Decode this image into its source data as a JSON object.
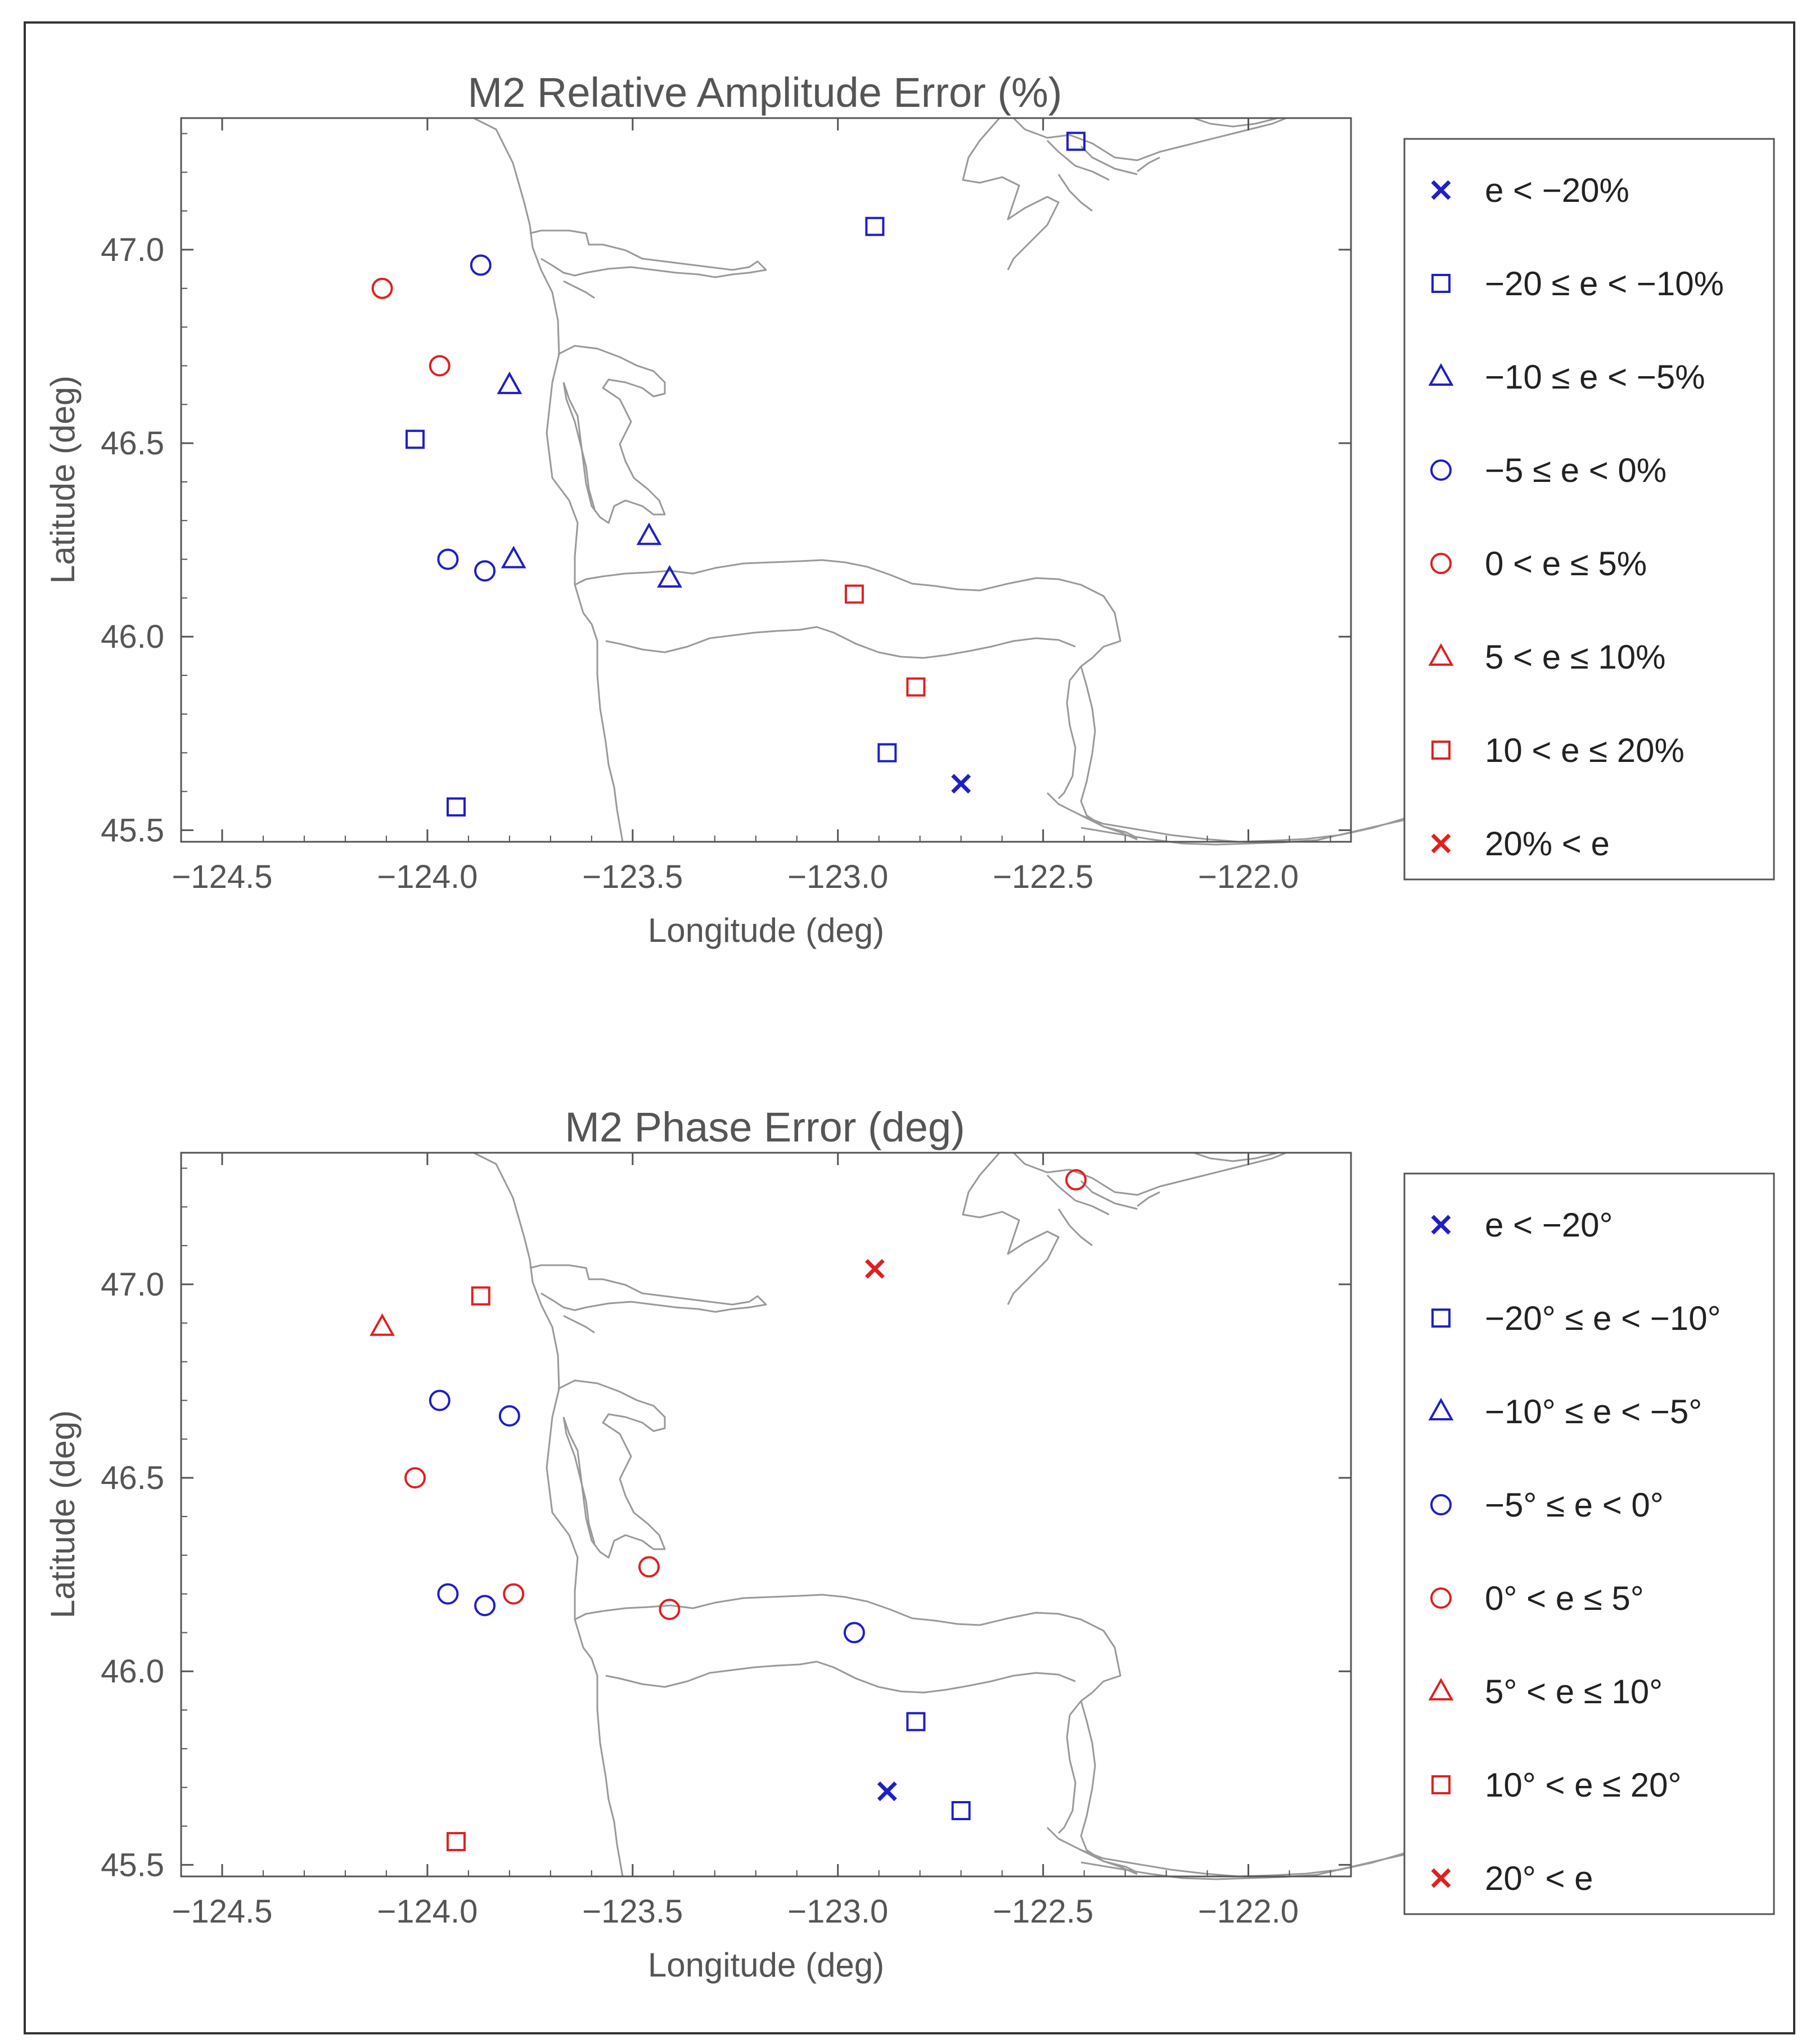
{
  "colors": {
    "negative": "#1f1fc8",
    "positive": "#e02020",
    "coast": "#999999",
    "frame": "#555555"
  },
  "chart_data": [
    {
      "type": "scatter",
      "title": "M2 Relative Amplitude Error (%)",
      "xlabel": "Longitude (deg)",
      "ylabel": "Latitude (deg)",
      "xlim": [
        -124.6,
        -121.75
      ],
      "ylim": [
        45.47,
        47.34
      ],
      "xticks": [
        -124.5,
        -124.0,
        -123.5,
        -123.0,
        -122.5,
        -122.0
      ],
      "xtick_labels": [
        "−124.5",
        "−124.0",
        "−123.5",
        "−123.0",
        "−122.5",
        "−122.0"
      ],
      "yticks": [
        45.5,
        46.0,
        46.5,
        47.0
      ],
      "ytick_labels": [
        "45.5",
        "46.0",
        "46.5",
        "47.0"
      ],
      "legend": [
        {
          "label": "e < −20%",
          "marker": "x",
          "color": "negative"
        },
        {
          "label": "−20 ≤ e < −10%",
          "marker": "square",
          "color": "negative"
        },
        {
          "label": "−10 ≤ e < −5%",
          "marker": "triangle",
          "color": "negative"
        },
        {
          "label": "−5 ≤ e < 0%",
          "marker": "circle",
          "color": "negative"
        },
        {
          "label": "0 < e ≤ 5%",
          "marker": "circle",
          "color": "positive"
        },
        {
          "label": "5 < e ≤ 10%",
          "marker": "triangle",
          "color": "positive"
        },
        {
          "label": "10 < e ≤ 20%",
          "marker": "square",
          "color": "positive"
        },
        {
          "label": "20% < e",
          "marker": "x",
          "color": "positive"
        }
      ],
      "points": [
        {
          "lon": -122.42,
          "lat": 47.28,
          "marker": "square",
          "color": "negative"
        },
        {
          "lon": -122.91,
          "lat": 47.06,
          "marker": "square",
          "color": "negative"
        },
        {
          "lon": -123.87,
          "lat": 46.96,
          "marker": "circle",
          "color": "negative"
        },
        {
          "lon": -124.11,
          "lat": 46.9,
          "marker": "circle",
          "color": "positive"
        },
        {
          "lon": -123.97,
          "lat": 46.7,
          "marker": "circle",
          "color": "positive"
        },
        {
          "lon": -123.8,
          "lat": 46.65,
          "marker": "triangle",
          "color": "negative"
        },
        {
          "lon": -124.03,
          "lat": 46.51,
          "marker": "square",
          "color": "negative"
        },
        {
          "lon": -123.95,
          "lat": 46.2,
          "marker": "circle",
          "color": "negative"
        },
        {
          "lon": -123.86,
          "lat": 46.17,
          "marker": "circle",
          "color": "negative"
        },
        {
          "lon": -123.79,
          "lat": 46.2,
          "marker": "triangle",
          "color": "negative"
        },
        {
          "lon": -123.46,
          "lat": 46.26,
          "marker": "triangle",
          "color": "negative"
        },
        {
          "lon": -123.41,
          "lat": 46.15,
          "marker": "triangle",
          "color": "negative"
        },
        {
          "lon": -122.96,
          "lat": 46.11,
          "marker": "square",
          "color": "positive"
        },
        {
          "lon": -122.81,
          "lat": 45.87,
          "marker": "square",
          "color": "positive"
        },
        {
          "lon": -122.88,
          "lat": 45.7,
          "marker": "square",
          "color": "negative"
        },
        {
          "lon": -122.7,
          "lat": 45.62,
          "marker": "x",
          "color": "negative"
        },
        {
          "lon": -123.93,
          "lat": 45.56,
          "marker": "square",
          "color": "negative"
        }
      ]
    },
    {
      "type": "scatter",
      "title": "M2 Phase Error (deg)",
      "xlabel": "Longitude (deg)",
      "ylabel": "Latitude (deg)",
      "xlim": [
        -124.6,
        -121.75
      ],
      "ylim": [
        45.47,
        47.34
      ],
      "xticks": [
        -124.5,
        -124.0,
        -123.5,
        -123.0,
        -122.5,
        -122.0
      ],
      "xtick_labels": [
        "−124.5",
        "−124.0",
        "−123.5",
        "−123.0",
        "−122.5",
        "−122.0"
      ],
      "yticks": [
        45.5,
        46.0,
        46.5,
        47.0
      ],
      "ytick_labels": [
        "45.5",
        "46.0",
        "46.5",
        "47.0"
      ],
      "legend": [
        {
          "label": "e < −20°",
          "marker": "x",
          "color": "negative"
        },
        {
          "label": "−20° ≤ e < −10°",
          "marker": "square",
          "color": "negative"
        },
        {
          "label": "−10° ≤ e < −5°",
          "marker": "triangle",
          "color": "negative"
        },
        {
          "label": "−5° ≤ e < 0°",
          "marker": "circle",
          "color": "negative"
        },
        {
          "label": "0° < e ≤ 5°",
          "marker": "circle",
          "color": "positive"
        },
        {
          "label": "5° < e ≤ 10°",
          "marker": "triangle",
          "color": "positive"
        },
        {
          "label": "10° < e ≤ 20°",
          "marker": "square",
          "color": "positive"
        },
        {
          "label": "20° < e",
          "marker": "x",
          "color": "positive"
        }
      ],
      "points": [
        {
          "lon": -122.42,
          "lat": 47.27,
          "marker": "circle",
          "color": "positive"
        },
        {
          "lon": -122.91,
          "lat": 47.04,
          "marker": "x",
          "color": "positive"
        },
        {
          "lon": -123.87,
          "lat": 46.97,
          "marker": "square",
          "color": "positive"
        },
        {
          "lon": -124.11,
          "lat": 46.89,
          "marker": "triangle",
          "color": "positive"
        },
        {
          "lon": -123.97,
          "lat": 46.7,
          "marker": "circle",
          "color": "negative"
        },
        {
          "lon": -123.8,
          "lat": 46.66,
          "marker": "circle",
          "color": "negative"
        },
        {
          "lon": -124.03,
          "lat": 46.5,
          "marker": "circle",
          "color": "positive"
        },
        {
          "lon": -123.95,
          "lat": 46.2,
          "marker": "circle",
          "color": "negative"
        },
        {
          "lon": -123.86,
          "lat": 46.17,
          "marker": "circle",
          "color": "negative"
        },
        {
          "lon": -123.79,
          "lat": 46.2,
          "marker": "circle",
          "color": "positive"
        },
        {
          "lon": -123.46,
          "lat": 46.27,
          "marker": "circle",
          "color": "positive"
        },
        {
          "lon": -123.41,
          "lat": 46.16,
          "marker": "circle",
          "color": "positive"
        },
        {
          "lon": -122.96,
          "lat": 46.1,
          "marker": "circle",
          "color": "negative"
        },
        {
          "lon": -122.81,
          "lat": 45.87,
          "marker": "square",
          "color": "negative"
        },
        {
          "lon": -122.88,
          "lat": 45.69,
          "marker": "x",
          "color": "negative"
        },
        {
          "lon": -122.7,
          "lat": 45.64,
          "marker": "square",
          "color": "negative"
        },
        {
          "lon": -123.93,
          "lat": 45.56,
          "marker": "square",
          "color": "positive"
        }
      ]
    }
  ]
}
